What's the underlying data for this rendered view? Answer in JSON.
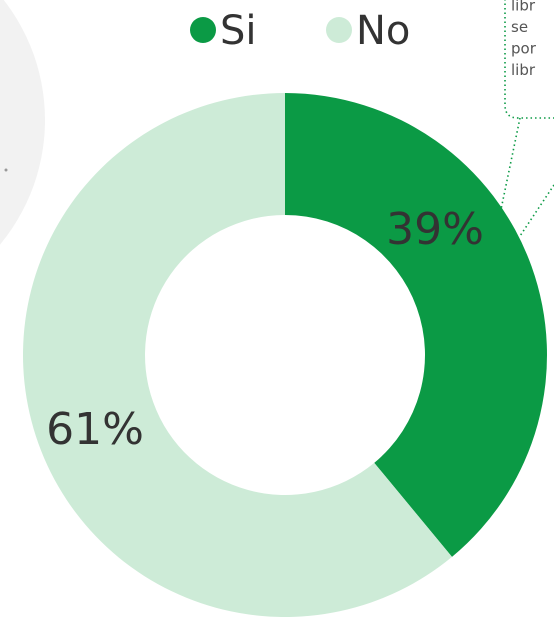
{
  "chart_data": {
    "type": "pie",
    "donut": true,
    "categories": [
      "Si",
      "No"
    ],
    "values": [
      39,
      61
    ],
    "value_labels": [
      "39%",
      "61%"
    ],
    "colors": [
      "#0b9a45",
      "#cdebd7"
    ],
    "annotation": [
      "libr",
      "se",
      "por",
      "libr"
    ]
  }
}
